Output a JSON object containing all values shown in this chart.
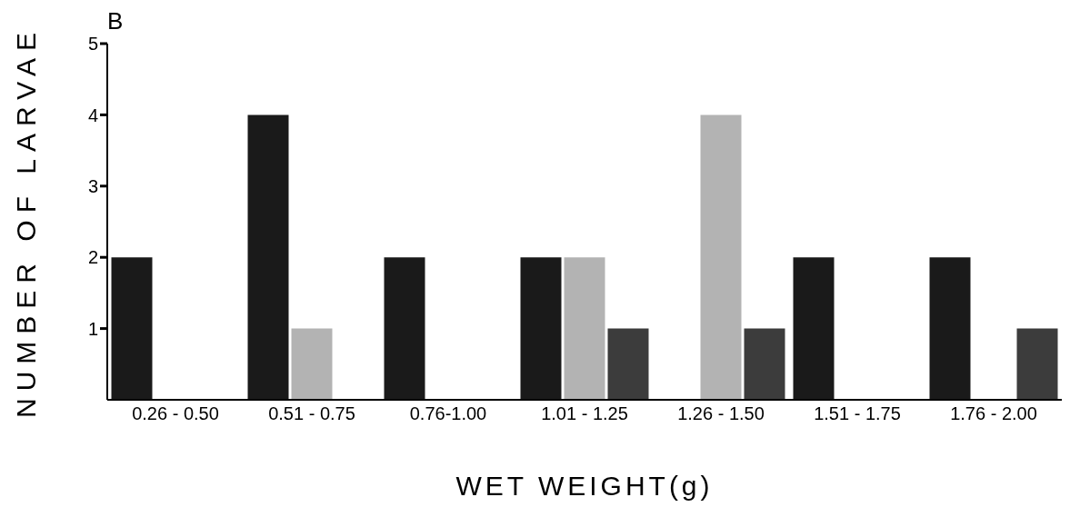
{
  "chart_data": {
    "type": "bar",
    "title": "B",
    "xlabel": "WET WEIGHT(g)",
    "ylabel": "NUMBER OF LARVAE",
    "categories": [
      "0.26 - 0.50",
      "0.51 - 0.75",
      "0.76-1.00",
      "1.01 - 1.25",
      "1.26 - 1.50",
      "1.51 - 1.75",
      "1.76 - 2.00"
    ],
    "series": [
      {
        "color": "#1a1a1a",
        "values": [
          2,
          4,
          2,
          2,
          0,
          2,
          2
        ]
      },
      {
        "color": "#b3b3b3",
        "values": [
          0,
          1,
          0,
          2,
          4,
          0,
          0
        ]
      },
      {
        "color": "#3c3c3c",
        "values": [
          0,
          0,
          0,
          1,
          1,
          0,
          1
        ]
      }
    ],
    "ylim": [
      0,
      5
    ],
    "yticks": [
      1,
      2,
      3,
      4,
      5
    ],
    "grid": false,
    "legend": false
  }
}
